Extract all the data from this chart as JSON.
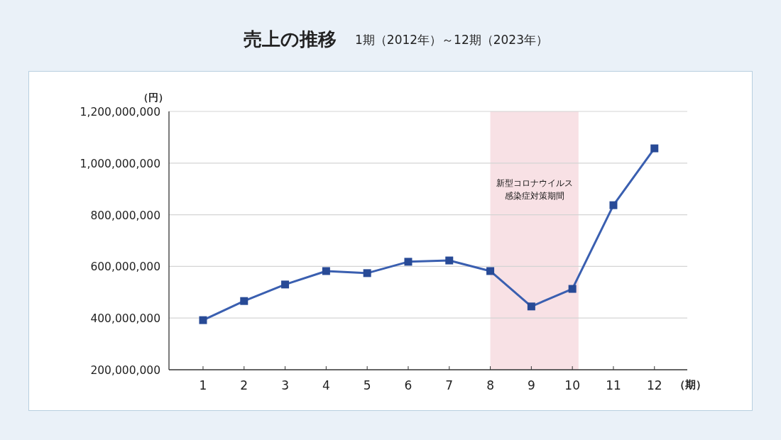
{
  "chart_data": {
    "type": "line",
    "title": "売上の推移",
    "subtitle": "1期（2012年）～12期（2023年）",
    "xlabel": "（期）",
    "ylabel": "（円）",
    "x": [
      1,
      2,
      3,
      4,
      5,
      6,
      7,
      8,
      9,
      10,
      11,
      12
    ],
    "series": [
      {
        "color": "#3a5fb0",
        "values": [
          392000000,
          466000000,
          530000000,
          582000000,
          574000000,
          618000000,
          623000000,
          582000000,
          445000000,
          513000000,
          837000000,
          1057000000
        ]
      }
    ],
    "xlim": [
      0.17,
      12.8
    ],
    "xticks": [
      1,
      2,
      3,
      4,
      5,
      6,
      7,
      8,
      9,
      10,
      11,
      12
    ],
    "ylim": [
      200000000,
      1200000000
    ],
    "yticks": [
      {
        "value": 200000000,
        "label": "200,000,000"
      },
      {
        "value": 400000000,
        "label": "400,000,000"
      },
      {
        "value": 600000000,
        "label": "600,000,000"
      },
      {
        "value": 800000000,
        "label": "800,000,000"
      },
      {
        "value": 1000000000,
        "label": "1,000,000,000"
      },
      {
        "value": 1200000000,
        "label": "1,200,000,000"
      }
    ],
    "bands": [
      {
        "axis": "x",
        "from": 8,
        "to": 10.15,
        "label": "新型コロナウイルス感染症対策期間",
        "color": "#f8e1e5"
      }
    ],
    "grid": "y",
    "marker": "square",
    "line_style": "solid"
  }
}
